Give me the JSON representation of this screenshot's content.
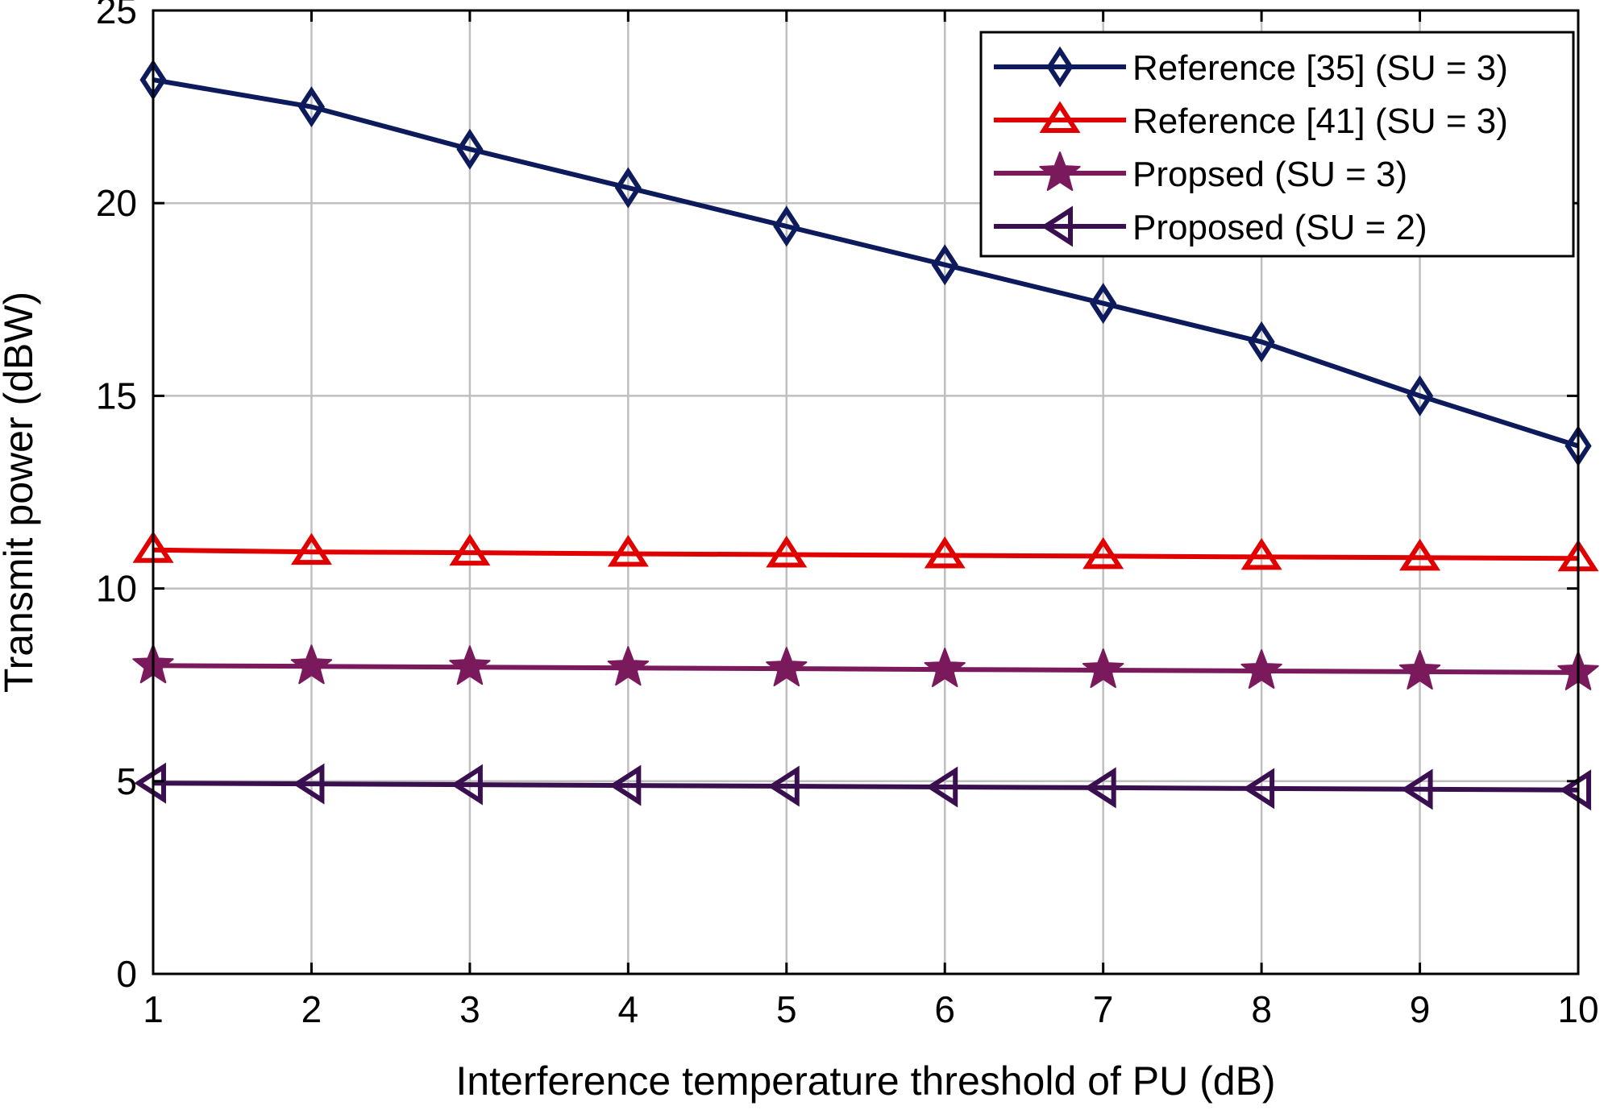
{
  "chart_data": {
    "type": "line",
    "title": "",
    "xlabel": "Interference temperature threshold of PU (dB)",
    "ylabel": "Transmit power (dBW)",
    "x": [
      1,
      2,
      3,
      4,
      5,
      6,
      7,
      8,
      9,
      10
    ],
    "xlim": [
      1,
      10
    ],
    "ylim": [
      0,
      25
    ],
    "xticks": [
      "1",
      "2",
      "3",
      "4",
      "5",
      "6",
      "7",
      "8",
      "9",
      "10"
    ],
    "yticks": [
      "0",
      "5",
      "10",
      "15",
      "20",
      "25"
    ],
    "ytick_values": [
      0,
      5,
      10,
      15,
      20,
      25
    ],
    "grid": true,
    "legend_position": "top-right",
    "series": [
      {
        "name": "Reference [35] (SU = 3)",
        "color": "#0d1a5c",
        "marker": "diamond",
        "values": [
          23.2,
          22.5,
          21.4,
          20.4,
          19.4,
          18.4,
          17.4,
          16.4,
          15.0,
          13.7
        ]
      },
      {
        "name": "Reference [41] (SU = 3)",
        "color": "#e00000",
        "marker": "triangle-up",
        "values": [
          11.0,
          10.95,
          10.93,
          10.9,
          10.88,
          10.86,
          10.84,
          10.82,
          10.8,
          10.78
        ]
      },
      {
        "name": "Propsed (SU = 3)",
        "color": "#7a1a5c",
        "marker": "star",
        "values": [
          8.0,
          7.98,
          7.96,
          7.94,
          7.92,
          7.9,
          7.88,
          7.86,
          7.84,
          7.82
        ]
      },
      {
        "name": "Proposed (SU = 2)",
        "color": "#3a0f4f",
        "marker": "triangle-left",
        "values": [
          4.95,
          4.93,
          4.91,
          4.89,
          4.87,
          4.85,
          4.83,
          4.81,
          4.79,
          4.77
        ]
      }
    ]
  }
}
